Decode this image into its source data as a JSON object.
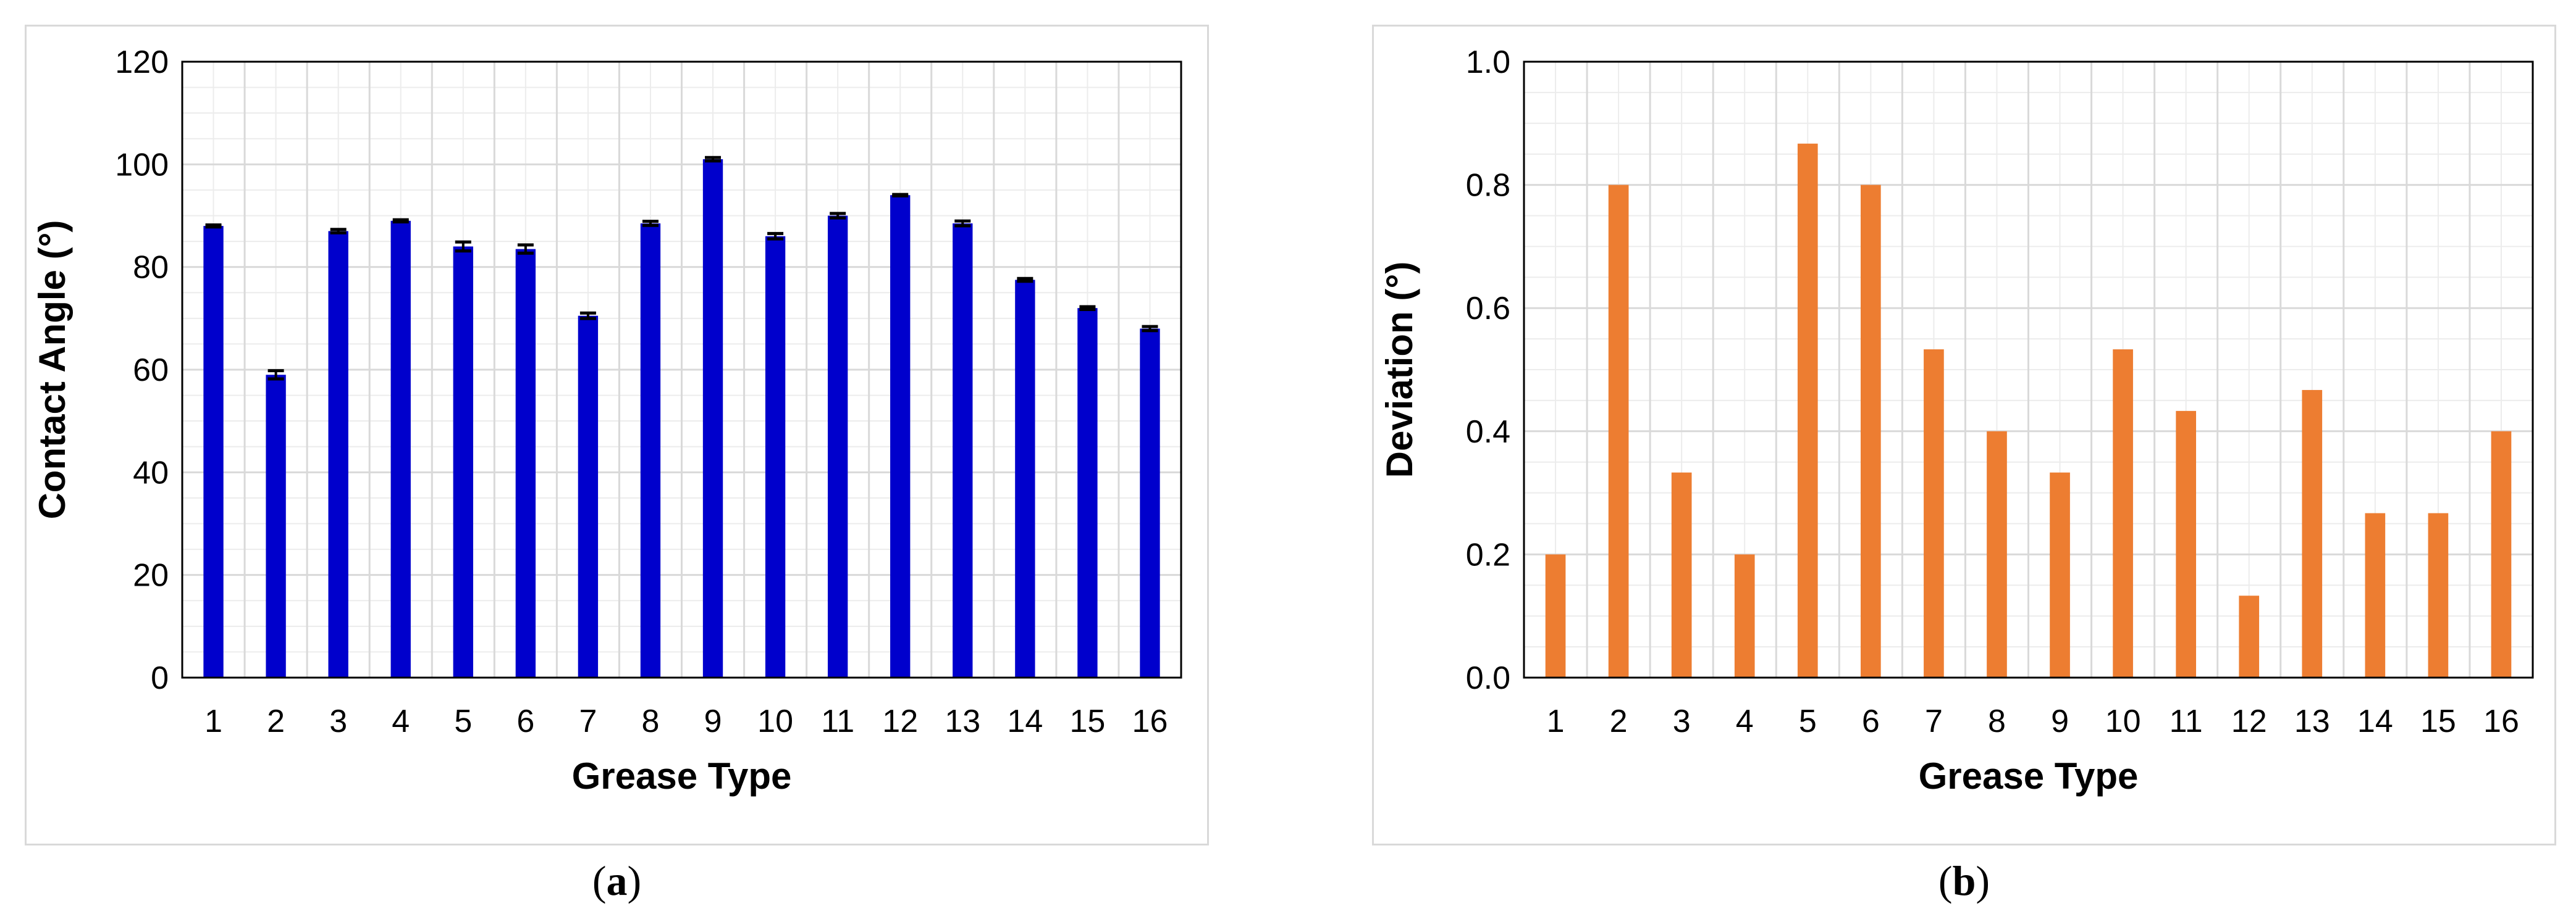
{
  "chart_data": [
    {
      "type": "bar",
      "panel_label": "a",
      "title": "",
      "xlabel": "Grease Type",
      "ylabel": "Contact Angle (°)",
      "categories": [
        "1",
        "2",
        "3",
        "4",
        "5",
        "6",
        "7",
        "8",
        "9",
        "10",
        "11",
        "12",
        "13",
        "14",
        "15",
        "16"
      ],
      "values": [
        88,
        59,
        87,
        89,
        84,
        83.5,
        70.5,
        88.5,
        101,
        86,
        90,
        94,
        88.5,
        77.5,
        72,
        68
      ],
      "error": [
        0.2,
        0.8,
        0.33,
        0.2,
        0.87,
        0.8,
        0.53,
        0.4,
        0.33,
        0.53,
        0.43,
        0.13,
        0.47,
        0.27,
        0.27,
        0.4
      ],
      "ylim": [
        0,
        120
      ],
      "yticks": [
        "0",
        "20",
        "40",
        "60",
        "80",
        "100",
        "120"
      ],
      "grid": true,
      "bar_color": "#0000cc",
      "error_bar_color": "#000000",
      "grid_color": "#d9d9d9"
    },
    {
      "type": "bar",
      "panel_label": "b",
      "title": "",
      "xlabel": "Grease Type",
      "ylabel": "Deviation (°)",
      "categories": [
        "1",
        "2",
        "3",
        "4",
        "5",
        "6",
        "7",
        "8",
        "9",
        "10",
        "11",
        "12",
        "13",
        "14",
        "15",
        "16"
      ],
      "values": [
        0.2,
        0.8,
        0.333,
        0.2,
        0.867,
        0.8,
        0.533,
        0.4,
        0.333,
        0.533,
        0.433,
        0.133,
        0.467,
        0.267,
        0.267,
        0.4
      ],
      "ylim": [
        0,
        1.0
      ],
      "yticks": [
        "0.0",
        "0.2",
        "0.4",
        "0.6",
        "0.8",
        "1.0"
      ],
      "grid": true,
      "bar_color": "#ed7d31",
      "grid_color": "#d9d9d9"
    }
  ],
  "captions": {
    "a": {
      "open": "(",
      "label": "a",
      "close": ")"
    },
    "b": {
      "open": "(",
      "label": "b",
      "close": ")"
    }
  }
}
